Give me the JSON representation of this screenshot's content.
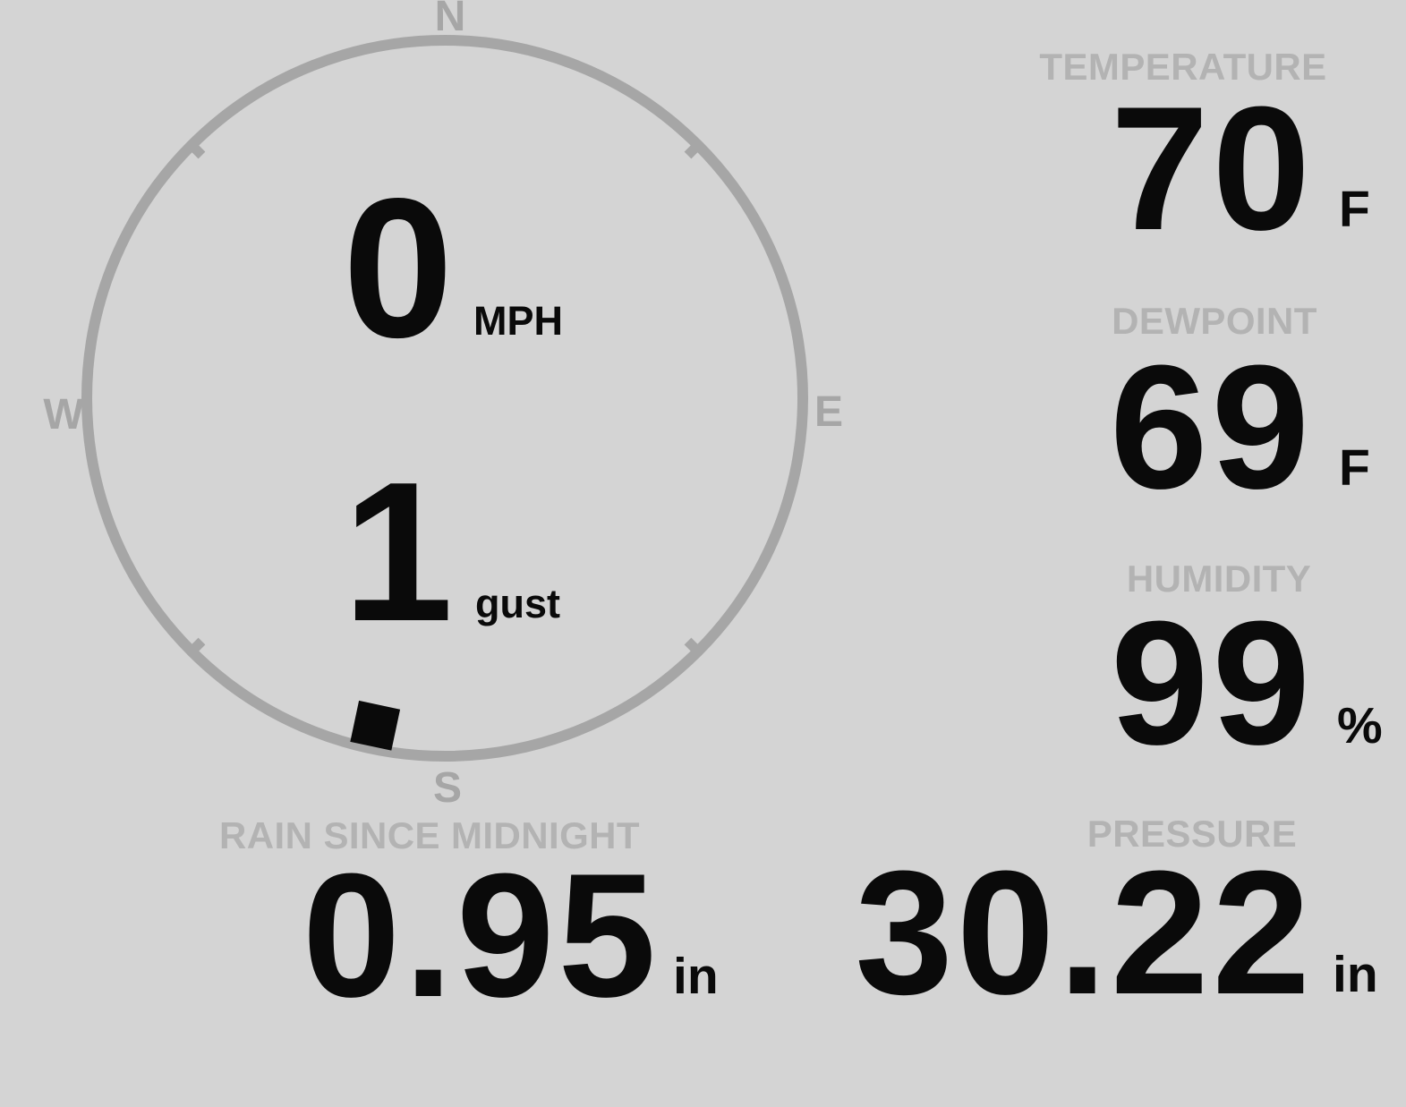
{
  "colors": {
    "background": "#d4d4d4",
    "value_black": "#0a0a0a",
    "label_gray": "#b3b3b3",
    "compass_gray": "#a6a6a6",
    "indicator_black": "#0a0a0a"
  },
  "wind": {
    "speed": "0",
    "speed_unit": "MPH",
    "gust": "1",
    "gust_label": "gust",
    "direction_deg": 192,
    "cardinals": {
      "north": "N",
      "east": "E",
      "south": "S",
      "west": "W"
    }
  },
  "temperature": {
    "label": "TEMPERATURE",
    "value": "70",
    "unit": "F"
  },
  "dewpoint": {
    "label": "DEWPOINT",
    "value": "69",
    "unit": "F"
  },
  "humidity": {
    "label": "HUMIDITY",
    "value": "99",
    "unit": "%"
  },
  "rain": {
    "label": "RAIN SINCE MIDNIGHT",
    "value": "0.95",
    "unit": "in"
  },
  "pressure": {
    "label": "PRESSURE",
    "value": "30.22",
    "unit": "in"
  }
}
